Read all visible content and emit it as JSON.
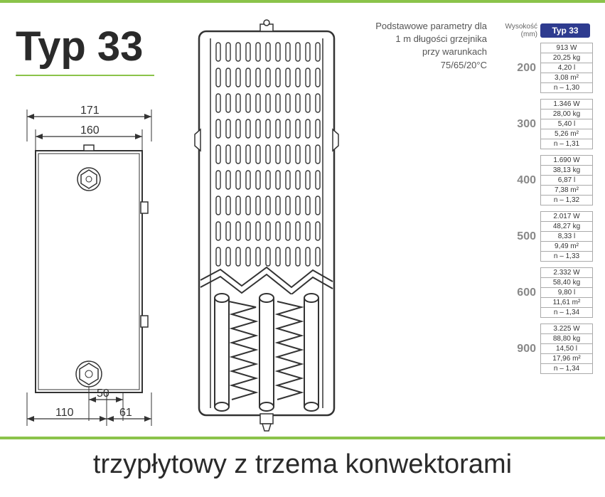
{
  "title": "Typ 33",
  "subtitle": "trzypłytowy z trzema konwektorami",
  "params_text": {
    "l1": "Podstawowe parametry dla",
    "l2": "1 m długości grzejnika",
    "l3": "przy warunkach",
    "l4": "75/65/20°C"
  },
  "dimensions": {
    "outer_width": "171",
    "inner_width": "160",
    "pipe_offset": "50",
    "left_offset": "110",
    "right_offset": "61"
  },
  "colors": {
    "green": "#8bc34a",
    "badge_bg": "#2e3b8f",
    "text_dark": "#2a2a2a",
    "text_muted": "#666",
    "border": "#aaa"
  },
  "spec_table": {
    "header_label": "Wysokość (mm)",
    "header_badge": "Typ 33",
    "groups": [
      {
        "height": "200",
        "rows": [
          "913 W",
          "20,25 kg",
          "4,20 l",
          "3,08 m²",
          "n – 1,30"
        ]
      },
      {
        "height": "300",
        "rows": [
          "1.346 W",
          "28,00 kg",
          "5,40 l",
          "5,26 m²",
          "n – 1,31"
        ]
      },
      {
        "height": "400",
        "rows": [
          "1.690 W",
          "38,13 kg",
          "6,87 l",
          "7,38 m²",
          "n – 1,32"
        ]
      },
      {
        "height": "500",
        "rows": [
          "2.017 W",
          "48,27 kg",
          "8,33 l",
          "9,49 m²",
          "n – 1,33"
        ]
      },
      {
        "height": "600",
        "rows": [
          "2.332 W",
          "58,40 kg",
          "9,80 l",
          "11,61 m²",
          "n – 1,34"
        ]
      },
      {
        "height": "900",
        "rows": [
          "3.225 W",
          "88,80 kg",
          "14,50 l",
          "17,96 m²",
          "n – 1,34"
        ]
      }
    ]
  }
}
